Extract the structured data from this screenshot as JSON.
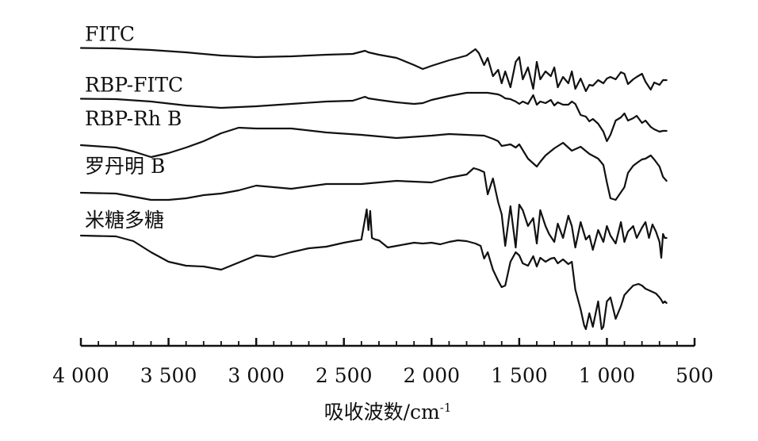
{
  "chart_data": {
    "type": "line",
    "xlabel": "吸收波数/cm",
    "xlabel_superscript": "-1",
    "xlim": [
      4000,
      500
    ],
    "x_ticks": [
      {
        "value": 4000,
        "label": "4 000"
      },
      {
        "value": 3500,
        "label": "3 500"
      },
      {
        "value": 3000,
        "label": "3 000"
      },
      {
        "value": 2500,
        "label": "2 500"
      },
      {
        "value": 2000,
        "label": "2 000"
      },
      {
        "value": 1500,
        "label": "1 500"
      },
      {
        "value": 1000,
        "label": "1 000"
      },
      {
        "value": 500,
        "label": "500"
      }
    ],
    "y_axis_shown": false,
    "grid": false,
    "legend": "labels placed above each curve",
    "series": [
      {
        "name": "FITC",
        "x": [
          4000,
          3800,
          3600,
          3400,
          3200,
          3000,
          2800,
          2600,
          2450,
          2380,
          2360,
          2300,
          2200,
          2100,
          2050,
          2000,
          1900,
          1800,
          1750,
          1730,
          1700,
          1680,
          1650,
          1620,
          1600,
          1580,
          1550,
          1520,
          1500,
          1480,
          1450,
          1420,
          1400,
          1380,
          1350,
          1320,
          1300,
          1280,
          1250,
          1220,
          1200,
          1180,
          1150,
          1120,
          1100,
          1080,
          1050,
          1020,
          1000,
          980,
          950,
          920,
          900,
          880,
          850,
          830,
          800,
          780,
          750,
          730,
          700,
          680,
          660
        ],
        "y": [
          60.5,
          61,
          63,
          66,
          70,
          72,
          71,
          69,
          68,
          64,
          66,
          69,
          73,
          82,
          87,
          83,
          76,
          70,
          62,
          67,
          82,
          73,
          96,
          88,
          105,
          90,
          110,
          78,
          72,
          100,
          85,
          112,
          78,
          100,
          90,
          96,
          85,
          110,
          97,
          105,
          90,
          112,
          99,
          115,
          107,
          108,
          101,
          105,
          99,
          97,
          100,
          91,
          93,
          106,
          100,
          97,
          93,
          103,
          113,
          104,
          107,
          101,
          101
        ]
      },
      {
        "name": "RBP-FITC",
        "x": [
          4000,
          3800,
          3600,
          3400,
          3200,
          3000,
          2800,
          2600,
          2450,
          2380,
          2360,
          2300,
          2200,
          2100,
          2050,
          2000,
          1900,
          1800,
          1750,
          1730,
          1700,
          1680,
          1650,
          1620,
          1600,
          1580,
          1550,
          1520,
          1500,
          1480,
          1450,
          1420,
          1400,
          1380,
          1350,
          1320,
          1300,
          1280,
          1250,
          1220,
          1200,
          1180,
          1150,
          1120,
          1100,
          1080,
          1050,
          1020,
          1000,
          980,
          950,
          920,
          900,
          880,
          850,
          830,
          800,
          780,
          750,
          730,
          700,
          680,
          660
        ],
        "y": [
          124.5,
          125,
          128,
          133,
          136,
          134,
          131,
          128,
          127,
          122,
          124,
          126,
          129,
          131,
          130,
          126,
          121,
          117,
          117,
          117,
          117,
          117,
          118,
          119,
          121,
          124,
          125,
          128,
          131,
          128,
          131,
          120,
          132,
          128,
          130,
          126,
          133,
          129,
          132,
          132,
          128,
          131,
          145,
          147,
          153,
          150,
          156,
          166,
          178,
          170,
          152,
          148,
          143,
          152,
          149,
          146,
          155,
          152,
          160,
          163,
          166,
          165,
          165
        ]
      },
      {
        "name": "RBP-Rh B",
        "x": [
          4000,
          3800,
          3700,
          3600,
          3500,
          3400,
          3300,
          3200,
          3100,
          3000,
          2800,
          2600,
          2400,
          2200,
          2000,
          1900,
          1800,
          1700,
          1650,
          1620,
          1600,
          1550,
          1520,
          1500,
          1450,
          1400,
          1380,
          1350,
          1300,
          1250,
          1200,
          1150,
          1100,
          1050,
          1020,
          1000,
          980,
          950,
          900,
          880,
          850,
          820,
          800,
          780,
          750,
          730,
          700,
          680,
          660
        ],
        "y": [
          183,
          186,
          191,
          198,
          193,
          186,
          178,
          168,
          161,
          162,
          162,
          167,
          170,
          174,
          171,
          169,
          170,
          171,
          175,
          178,
          184,
          182,
          186,
          182,
          200,
          210,
          204,
          196,
          187,
          180,
          190,
          185,
          194,
          200,
          208,
          230,
          250,
          252,
          236,
          218,
          209,
          204,
          201,
          200,
          196,
          201,
          210,
          223,
          228
        ]
      },
      {
        "name": "罗丹明 B",
        "x": [
          4000,
          3800,
          3700,
          3600,
          3500,
          3400,
          3300,
          3200,
          3100,
          3000,
          2800,
          2600,
          2400,
          2200,
          2000,
          1900,
          1800,
          1760,
          1730,
          1700,
          1680,
          1650,
          1620,
          1600,
          1580,
          1550,
          1520,
          1500,
          1480,
          1450,
          1420,
          1400,
          1380,
          1350,
          1330,
          1300,
          1280,
          1250,
          1220,
          1200,
          1180,
          1150,
          1120,
          1100,
          1080,
          1050,
          1020,
          1000,
          980,
          950,
          920,
          900,
          880,
          850,
          830,
          800,
          780,
          760,
          740,
          720,
          700,
          690,
          680,
          670,
          660
        ],
        "y": [
          243,
          244,
          248,
          252,
          252,
          250,
          246,
          244,
          240,
          234,
          238,
          232,
          232,
          228,
          230,
          224,
          220,
          212,
          214,
          217,
          245,
          225,
          255,
          270,
          310,
          260,
          312,
          258,
          265,
          285,
          275,
          307,
          265,
          285,
          295,
          305,
          282,
          300,
          272,
          285,
          312,
          280,
          302,
          297,
          315,
          290,
          305,
          285,
          297,
          307,
          280,
          305,
          292,
          285,
          300,
          287,
          280,
          300,
          283,
          292,
          305,
          325,
          295,
          300,
          300
        ]
      },
      {
        "name": "米糖多糖",
        "x": [
          4000,
          3800,
          3700,
          3600,
          3500,
          3400,
          3300,
          3200,
          3100,
          3000,
          2900,
          2800,
          2700,
          2600,
          2500,
          2400,
          2370,
          2360,
          2350,
          2340,
          2320,
          2300,
          2250,
          2200,
          2150,
          2100,
          2050,
          2000,
          1950,
          1900,
          1850,
          1800,
          1750,
          1720,
          1700,
          1680,
          1650,
          1620,
          1600,
          1580,
          1550,
          1520,
          1500,
          1480,
          1450,
          1420,
          1400,
          1380,
          1350,
          1320,
          1300,
          1280,
          1250,
          1220,
          1200,
          1180,
          1150,
          1130,
          1120,
          1100,
          1080,
          1050,
          1030,
          1020,
          1000,
          980,
          950,
          920,
          900,
          880,
          850,
          820,
          800,
          780,
          760,
          740,
          720,
          700,
          690,
          680,
          670,
          660
        ],
        "y": [
          297,
          298,
          304,
          318,
          330,
          335,
          336,
          340,
          331,
          322,
          324,
          318,
          313,
          311,
          306,
          302,
          264,
          290,
          266,
          300,
          302,
          303,
          312,
          310,
          308,
          306,
          307,
          306,
          308,
          305,
          303,
          304,
          307,
          310,
          326,
          318,
          340,
          354,
          362,
          360,
          330,
          318,
          322,
          332,
          335,
          323,
          336,
          325,
          330,
          326,
          325,
          332,
          327,
          333,
          330,
          365,
          390,
          410,
          415,
          395,
          412,
          380,
          415,
          412,
          380,
          375,
          402,
          386,
          372,
          367,
          360,
          358,
          360,
          364,
          366,
          368,
          370,
          375,
          378,
          382,
          380,
          382
        ]
      }
    ]
  }
}
